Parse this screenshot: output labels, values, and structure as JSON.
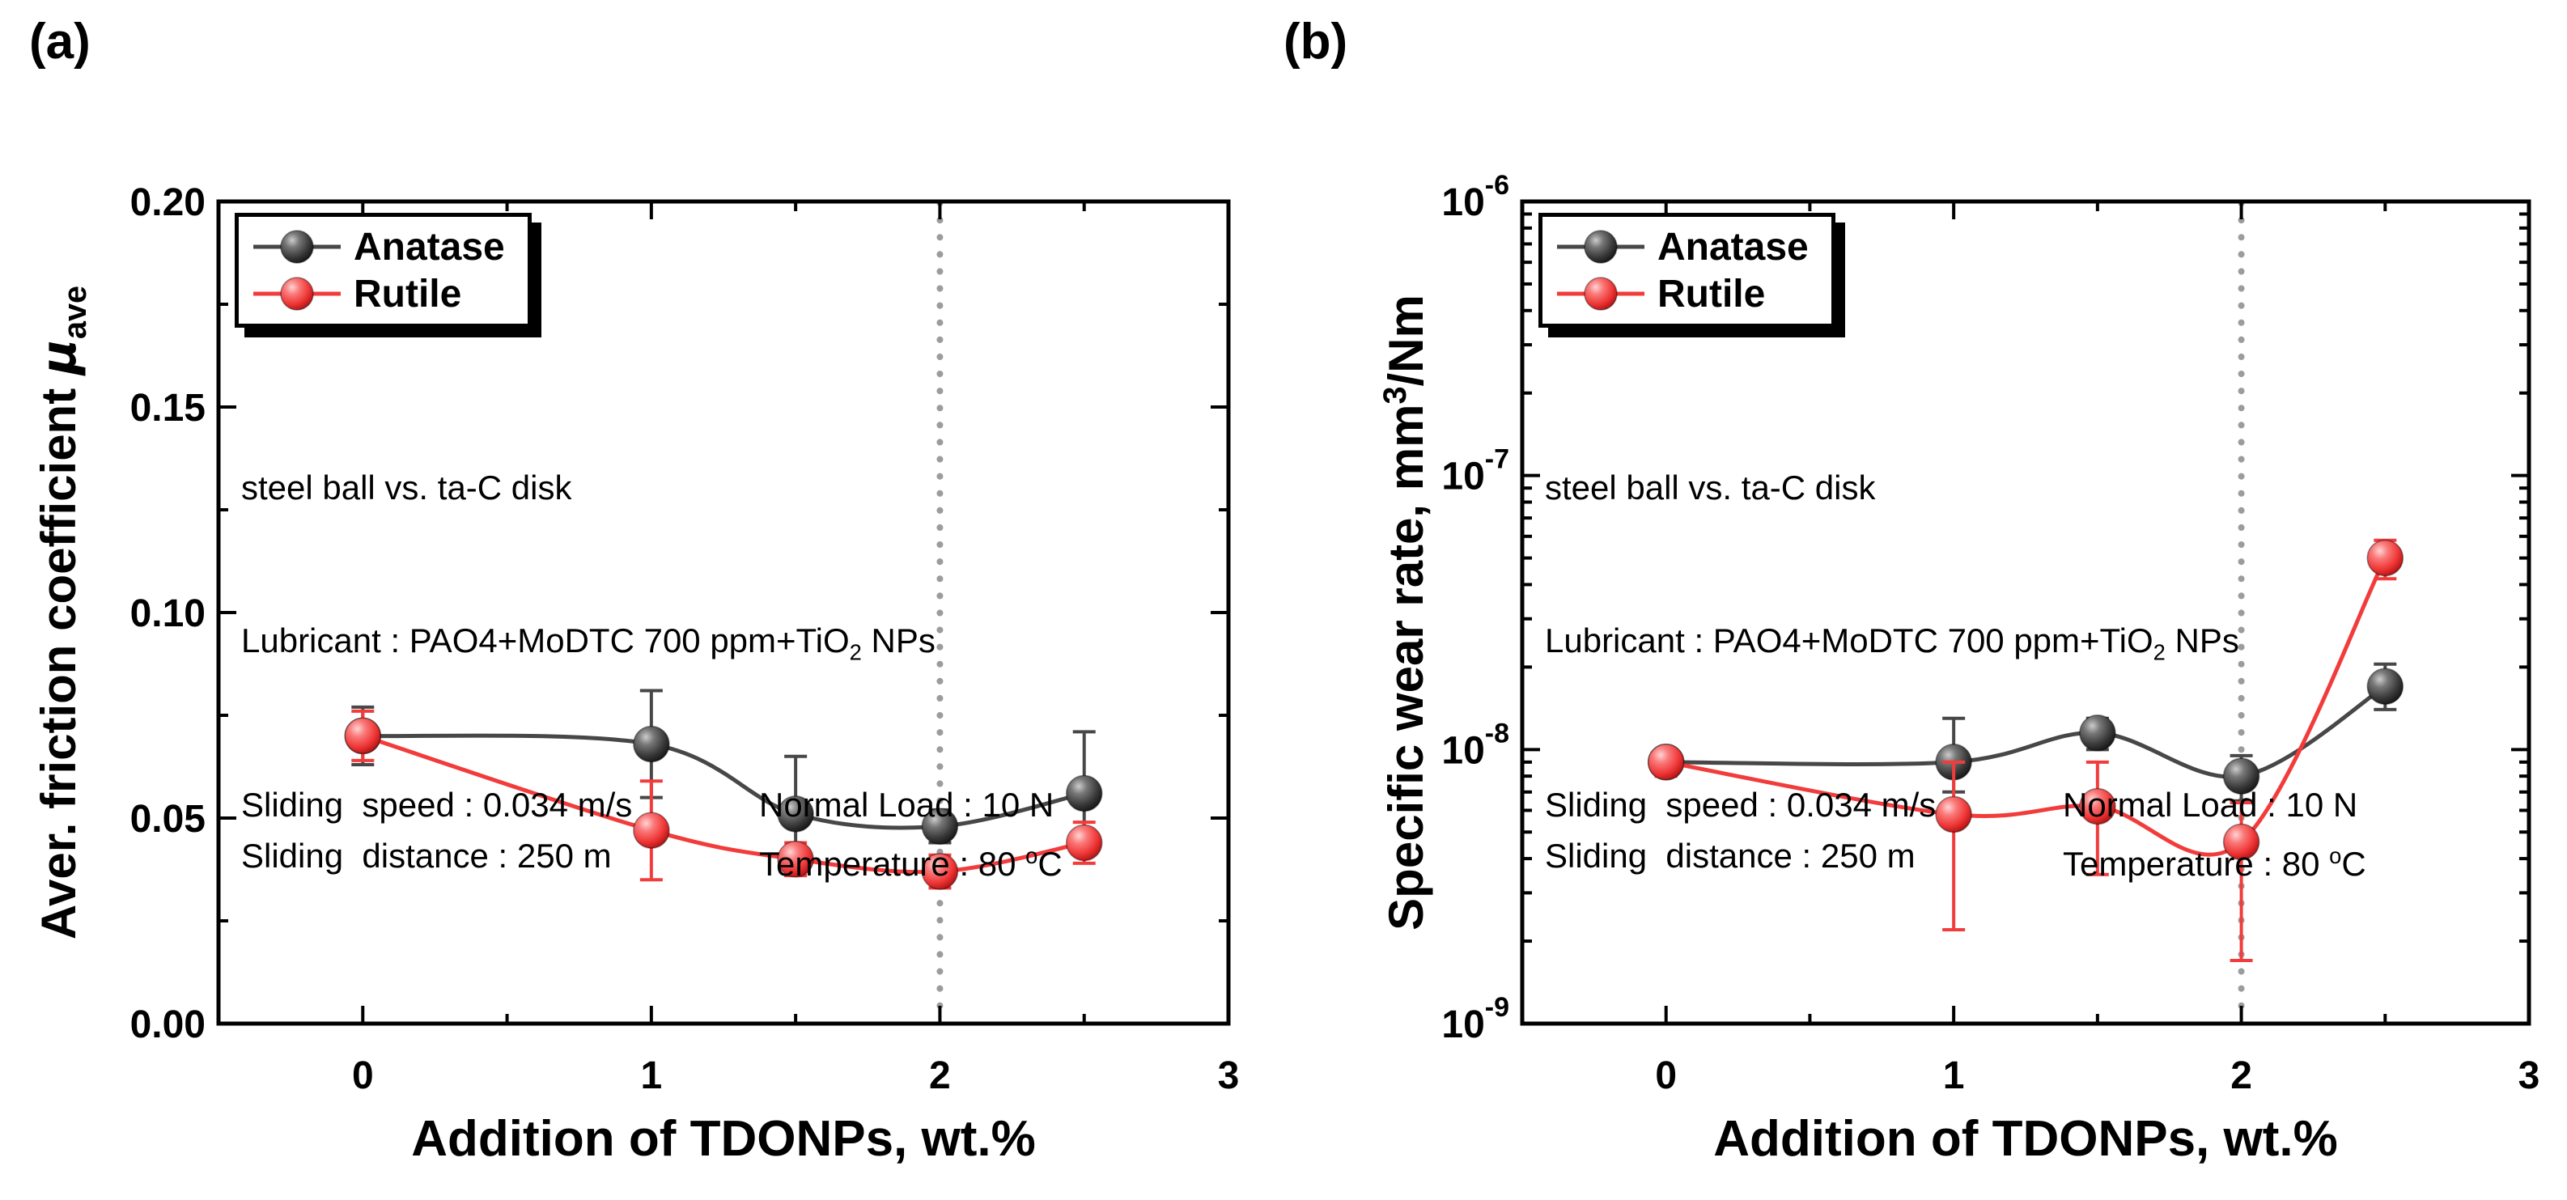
{
  "figure": {
    "background": "#ffffff",
    "frame_color": "#000000",
    "reference_line_color": "#9c9c9c",
    "anatase_color": "#474747",
    "rutile_color": "#f23c3c"
  },
  "chart_data": [
    {
      "id": "a",
      "type": "line-scatter",
      "panel_label": "(a)",
      "xlabel": "Addition of TDONPs, wt.%",
      "ylabel": "Aver. friction coefficient μave",
      "ylabel_parts": {
        "pre": "Aver. friction coefficient ",
        "symbol": "μ",
        "sub": "ave"
      },
      "xscale": "linear",
      "yscale": "linear",
      "xlim": [
        -0.5,
        3
      ],
      "ylim": [
        0,
        0.2
      ],
      "xticks": [
        0,
        1,
        2,
        3
      ],
      "xtick_labels": [
        "0",
        "1",
        "2",
        "3"
      ],
      "x_minor_ticks": [
        0.5,
        1.5,
        2.5
      ],
      "yticks": [
        0,
        0.05,
        0.1,
        0.15,
        0.2
      ],
      "ytick_labels": [
        "0.00",
        "0.05",
        "0.10",
        "0.15",
        "0.20"
      ],
      "y_minor_ticks": [
        0.025,
        0.075,
        0.125,
        0.175
      ],
      "grid": false,
      "legend_position": "top-left",
      "reference_line": {
        "x": 2,
        "style": "dotted",
        "color": "#9c9c9c"
      },
      "annotation": {
        "line1": "steel ball vs. ta-C disk",
        "line2_pre": "Lubricant : PAO4+MoDTC 700 ppm+TiO",
        "line2_sub": "2",
        "line2_post": " NPs",
        "line3_left": "Sliding  speed : 0.034 m/s",
        "line3_right": "Normal Load : 10 N",
        "line4_left": "Sliding  distance : 250 m",
        "line4_right_pre": "Temperature : 80 ",
        "line4_right_sup": "o",
        "line4_right_post": "C"
      },
      "series": [
        {
          "name": "Anatase",
          "color": "#474747",
          "marker_gradient": "grad-anatase",
          "x": [
            0,
            1,
            1.5,
            2,
            2.5
          ],
          "y": [
            0.07,
            0.068,
            0.051,
            0.048,
            0.056
          ],
          "yerr_plus": [
            0.007,
            0.013,
            0.014,
            0.004,
            0.015
          ],
          "yerr_minus": [
            0.007,
            0.013,
            0.012,
            0.004,
            0.014
          ]
        },
        {
          "name": "Rutile",
          "color": "#f23c3c",
          "marker_gradient": "grad-rutile",
          "x": [
            0,
            1,
            1.5,
            2,
            2.5
          ],
          "y": [
            0.07,
            0.047,
            0.04,
            0.037,
            0.044
          ],
          "yerr_plus": [
            0.006,
            0.012,
            0.004,
            0.004,
            0.005
          ],
          "yerr_minus": [
            0.006,
            0.012,
            0.004,
            0.004,
            0.005
          ]
        }
      ]
    },
    {
      "id": "b",
      "type": "line-scatter",
      "panel_label": "(b)",
      "xlabel": "Addition of TDONPs, wt.%",
      "ylabel": "Specific wear rate, mm3/Nm",
      "ylabel_parts": {
        "pre": "Specific wear rate, mm",
        "sup": "3",
        "post": "/Nm"
      },
      "xscale": "linear",
      "yscale": "log",
      "xlim": [
        -0.5,
        3
      ],
      "ylim": [
        1e-09,
        1e-06
      ],
      "xticks": [
        0,
        1,
        2,
        3
      ],
      "xtick_labels": [
        "0",
        "1",
        "2",
        "3"
      ],
      "x_minor_ticks": [
        0.5,
        1.5,
        2.5
      ],
      "yticks": [
        1e-09,
        1e-08,
        1e-07,
        1e-06
      ],
      "ytick_labels": [
        {
          "base": "10",
          "exp": "-9"
        },
        {
          "base": "10",
          "exp": "-8"
        },
        {
          "base": "10",
          "exp": "-7"
        },
        {
          "base": "10",
          "exp": "-6"
        }
      ],
      "grid": false,
      "legend_position": "top-left",
      "reference_line": {
        "x": 2,
        "style": "dotted",
        "color": "#9c9c9c"
      },
      "annotation": {
        "line1": "steel ball vs. ta-C disk",
        "line2_pre": "Lubricant : PAO4+MoDTC 700 ppm+TiO",
        "line2_sub": "2",
        "line2_post": " NPs",
        "line3_left": "Sliding  speed : 0.034 m/s",
        "line3_right": "Normal Load : 10 N",
        "line4_left": "Sliding  distance : 250 m",
        "line4_right_pre": "Temperature : 80 ",
        "line4_right_sup": "o",
        "line4_right_post": "C"
      },
      "series": [
        {
          "name": "Anatase",
          "color": "#474747",
          "marker_gradient": "grad-anatase",
          "x": [
            0,
            1,
            1.5,
            2,
            2.5
          ],
          "y": [
            9e-09,
            9e-09,
            1.15e-08,
            8e-09,
            1.7e-08
          ],
          "yerr_plus": [
            1e-09,
            4e-09,
            1.5e-09,
            1.5e-09,
            3.5e-09
          ],
          "yerr_minus": [
            1e-09,
            2e-09,
            1.5e-09,
            1.5e-09,
            3e-09
          ]
        },
        {
          "name": "Rutile",
          "color": "#f23c3c",
          "marker_gradient": "grad-rutile",
          "x": [
            0,
            1,
            1.5,
            2,
            2.5
          ],
          "y": [
            9e-09,
            5.8e-09,
            6.2e-09,
            4.6e-09,
            5e-08
          ],
          "yerr_plus": [
            1e-09,
            3.2e-09,
            2.8e-09,
            1.8e-09,
            8e-09
          ],
          "yerr_minus": [
            1e-09,
            3.6e-09,
            2.7e-09,
            2.9e-09,
            8e-09
          ]
        }
      ]
    }
  ]
}
